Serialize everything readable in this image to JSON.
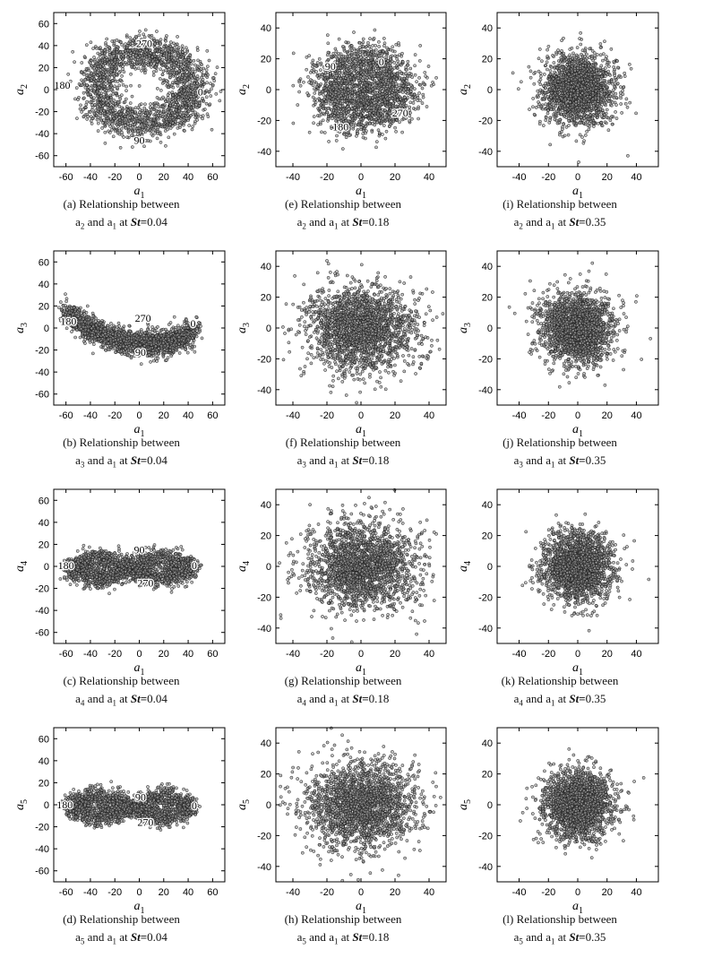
{
  "chart_data": [
    {
      "id": "a",
      "type": "scatter",
      "shape": "ring",
      "title": "",
      "xlabel": "a1",
      "ylabel": "a2",
      "xlim": [
        -70,
        70
      ],
      "ylim": [
        -70,
        70
      ],
      "xticks": [
        -60,
        -40,
        -20,
        0,
        20,
        40,
        60
      ],
      "yticks": [
        -60,
        -40,
        -20,
        0,
        20,
        40,
        60
      ],
      "points_approx": 2000,
      "annotations": [
        {
          "text": "270",
          "x": 4,
          "y": 42
        },
        {
          "text": "0",
          "x": 50,
          "y": -2
        },
        {
          "text": "180",
          "x": -63,
          "y": 4
        },
        {
          "text": "90",
          "x": 0,
          "y": -46
        }
      ],
      "caption": {
        "letter": "(a)",
        "line1": "Relationship between",
        "y": "a2",
        "x": "a1",
        "St": "0.04"
      }
    },
    {
      "id": "e",
      "type": "scatter",
      "shape": "ring",
      "title": "",
      "xlabel": "a1",
      "ylabel": "a2",
      "xlim": [
        -50,
        50
      ],
      "ylim": [
        -50,
        50
      ],
      "xticks": [
        -40,
        -20,
        0,
        20,
        40
      ],
      "yticks": [
        -40,
        -20,
        0,
        20,
        40
      ],
      "points_approx": 2000,
      "annotations": [
        {
          "text": "0",
          "x": 12,
          "y": 18
        },
        {
          "text": "90",
          "x": -18,
          "y": 15
        },
        {
          "text": "270",
          "x": 23,
          "y": -15
        },
        {
          "text": "180",
          "x": -12,
          "y": -24
        }
      ],
      "caption": {
        "letter": "(e)",
        "line1": "Relationship between",
        "y": "a2",
        "x": "a1",
        "St": "0.18"
      }
    },
    {
      "id": "i",
      "type": "scatter",
      "shape": "cloud",
      "title": "",
      "xlabel": "a1",
      "ylabel": "a2",
      "xlim": [
        -55,
        55
      ],
      "ylim": [
        -50,
        50
      ],
      "xticks": [
        -40,
        -20,
        0,
        20,
        40
      ],
      "yticks": [
        -40,
        -20,
        0,
        20,
        40
      ],
      "points_approx": 2000,
      "annotations": [],
      "caption": {
        "letter": "(i)",
        "line1": "Relationship between",
        "y": "a2",
        "x": "a1",
        "St": "0.35"
      }
    },
    {
      "id": "b",
      "type": "scatter",
      "shape": "crescent",
      "title": "",
      "xlabel": "a1",
      "ylabel": "a3",
      "xlim": [
        -70,
        70
      ],
      "ylim": [
        -70,
        70
      ],
      "xticks": [
        -60,
        -40,
        -20,
        0,
        20,
        40,
        60
      ],
      "yticks": [
        -60,
        -40,
        -20,
        0,
        20,
        40,
        60
      ],
      "points_approx": 2000,
      "annotations": [
        {
          "text": "180",
          "x": -58,
          "y": 6
        },
        {
          "text": "270",
          "x": 3,
          "y": 9
        },
        {
          "text": "0",
          "x": 44,
          "y": 4
        },
        {
          "text": "90",
          "x": 1,
          "y": -22
        }
      ],
      "caption": {
        "letter": "(b)",
        "line1": "Relationship between",
        "y": "a3",
        "x": "a1",
        "St": "0.04"
      }
    },
    {
      "id": "f",
      "type": "scatter",
      "shape": "cloud",
      "title": "",
      "xlabel": "a1",
      "ylabel": "a3",
      "xlim": [
        -50,
        50
      ],
      "ylim": [
        -50,
        50
      ],
      "xticks": [
        -40,
        -20,
        0,
        20,
        40
      ],
      "yticks": [
        -40,
        -20,
        0,
        20,
        40
      ],
      "points_approx": 2000,
      "annotations": [],
      "caption": {
        "letter": "(f)",
        "line1": "Relationship between",
        "y": "a3",
        "x": "a1",
        "St": "0.18"
      }
    },
    {
      "id": "j",
      "type": "scatter",
      "shape": "cloud",
      "title": "",
      "xlabel": "a1",
      "ylabel": "a3",
      "xlim": [
        -55,
        55
      ],
      "ylim": [
        -50,
        50
      ],
      "xticks": [
        -40,
        -20,
        0,
        20,
        40
      ],
      "yticks": [
        -40,
        -20,
        0,
        20,
        40
      ],
      "points_approx": 2000,
      "annotations": [],
      "caption": {
        "letter": "(j)",
        "line1": "Relationship between",
        "y": "a3",
        "x": "a1",
        "St": "0.35"
      }
    },
    {
      "id": "c",
      "type": "scatter",
      "shape": "figure-eight",
      "title": "",
      "xlabel": "a1",
      "ylabel": "a4",
      "xlim": [
        -70,
        70
      ],
      "ylim": [
        -70,
        70
      ],
      "xticks": [
        -60,
        -40,
        -20,
        0,
        20,
        40,
        60
      ],
      "yticks": [
        -60,
        -40,
        -20,
        0,
        20,
        40,
        60
      ],
      "points_approx": 2000,
      "annotations": [
        {
          "text": "180",
          "x": -60,
          "y": 1
        },
        {
          "text": "90",
          "x": 0,
          "y": 15
        },
        {
          "text": "270",
          "x": 5,
          "y": -15
        },
        {
          "text": "0",
          "x": 45,
          "y": 1
        }
      ],
      "caption": {
        "letter": "(c)",
        "line1": "Relationship between",
        "y": "a4",
        "x": "a1",
        "St": "0.04"
      }
    },
    {
      "id": "g",
      "type": "scatter",
      "shape": "cloud",
      "title": "",
      "xlabel": "a1",
      "ylabel": "a4",
      "xlim": [
        -50,
        50
      ],
      "ylim": [
        -50,
        50
      ],
      "xticks": [
        -40,
        -20,
        0,
        20,
        40
      ],
      "yticks": [
        -40,
        -20,
        0,
        20,
        40
      ],
      "points_approx": 2000,
      "annotations": [],
      "caption": {
        "letter": "(g)",
        "line1": "Relationship between",
        "y": "a4",
        "x": "a1",
        "St": "0.18"
      }
    },
    {
      "id": "k",
      "type": "scatter",
      "shape": "cloud",
      "title": "",
      "xlabel": "a1",
      "ylabel": "a4",
      "xlim": [
        -55,
        55
      ],
      "ylim": [
        -50,
        50
      ],
      "xticks": [
        -40,
        -20,
        0,
        20,
        40
      ],
      "yticks": [
        -40,
        -20,
        0,
        20,
        40
      ],
      "points_approx": 2000,
      "annotations": [],
      "caption": {
        "letter": "(k)",
        "line1": "Relationship between",
        "y": "a4",
        "x": "a1",
        "St": "0.35"
      }
    },
    {
      "id": "d",
      "type": "scatter",
      "shape": "figure-eight",
      "title": "",
      "xlabel": "a1",
      "ylabel": "a5",
      "xlim": [
        -70,
        70
      ],
      "ylim": [
        -70,
        70
      ],
      "xticks": [
        -60,
        -40,
        -20,
        0,
        20,
        40,
        60
      ],
      "yticks": [
        -60,
        -40,
        -20,
        0,
        20,
        40,
        60
      ],
      "points_approx": 2000,
      "annotations": [
        {
          "text": "180",
          "x": -61,
          "y": 0
        },
        {
          "text": "90",
          "x": 1,
          "y": 7
        },
        {
          "text": "270",
          "x": 5,
          "y": -16
        },
        {
          "text": "0",
          "x": 45,
          "y": -1
        }
      ],
      "caption": {
        "letter": "(d)",
        "line1": "Relationship between",
        "y": "a5",
        "x": "a1",
        "St": "0.04"
      }
    },
    {
      "id": "h",
      "type": "scatter",
      "shape": "cloud",
      "title": "",
      "xlabel": "a1",
      "ylabel": "a5",
      "xlim": [
        -50,
        50
      ],
      "ylim": [
        -50,
        50
      ],
      "xticks": [
        -40,
        -20,
        0,
        20,
        40
      ],
      "yticks": [
        -40,
        -20,
        0,
        20,
        40
      ],
      "points_approx": 2000,
      "annotations": [],
      "caption": {
        "letter": "(h)",
        "line1": "Relationship between",
        "y": "a5",
        "x": "a1",
        "St": "0.18"
      }
    },
    {
      "id": "l",
      "type": "scatter",
      "shape": "cloud",
      "title": "",
      "xlabel": "a1",
      "ylabel": "a5",
      "xlim": [
        -55,
        55
      ],
      "ylim": [
        -50,
        50
      ],
      "xticks": [
        -40,
        -20,
        0,
        20,
        40
      ],
      "yticks": [
        -40,
        -20,
        0,
        20,
        40
      ],
      "points_approx": 2000,
      "annotations": [],
      "caption": {
        "letter": "(l)",
        "line1": "Relationship between",
        "y": "a5",
        "x": "a1",
        "St": "0.35"
      }
    }
  ],
  "caption_text": {
    "and": "and",
    "at": "at",
    "st_symbol": "St",
    "equals": "="
  },
  "colors": {
    "marker": "#1a1a1a",
    "axis": "#000000",
    "background": "#ffffff"
  }
}
